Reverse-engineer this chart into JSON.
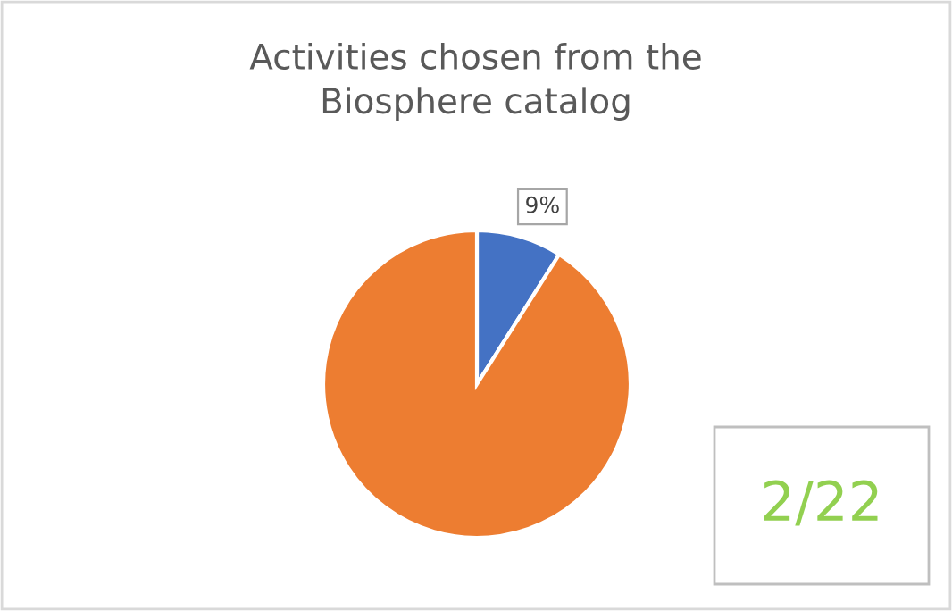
{
  "chart_data": {
    "type": "pie",
    "title": "Activities chosen from the\nBiosphere catalog",
    "categories": [
      null,
      null
    ],
    "values": [
      9,
      91
    ],
    "colors": [
      "#4472c4",
      "#ed7d31"
    ],
    "value_labels": [
      "9%",
      null
    ],
    "annotations": [
      "2/22"
    ]
  }
}
